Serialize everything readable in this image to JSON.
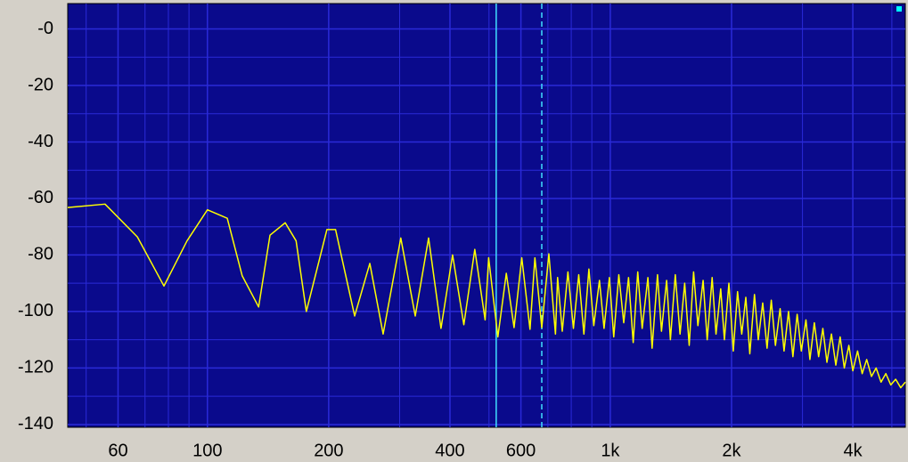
{
  "chart_data": {
    "type": "line",
    "xscale": "log",
    "xlim": [
      45,
      5400
    ],
    "ylim": [
      -141,
      9
    ],
    "xticks": [
      60,
      100,
      200,
      400,
      600,
      {
        "value": 1000,
        "label": "1k"
      },
      {
        "value": 2000,
        "label": "2k"
      },
      {
        "value": 4000,
        "label": "4k"
      }
    ],
    "xminorticks": [
      50,
      70,
      80,
      90,
      300,
      500,
      700,
      800,
      900,
      3000,
      5000
    ],
    "yticks": [
      {
        "value": 0,
        "label": "-0"
      },
      -20,
      -40,
      -60,
      -80,
      -100,
      -120,
      -140
    ],
    "yminorticks": [
      -10,
      -30,
      -50,
      -70,
      -90,
      -110,
      -130
    ],
    "grid": true,
    "cursors": [
      521,
      676
    ],
    "x": [
      45,
      55.7,
      67,
      78,
      89,
      100,
      112,
      122,
      134,
      143,
      156,
      166,
      176,
      198,
      208,
      232,
      253,
      273,
      302,
      328,
      354,
      380,
      406,
      433,
      461,
      489,
      499,
      526,
      552,
      577,
      603,
      632,
      650,
      676,
      704,
      731,
      740,
      760,
      785,
      810,
      835,
      860,
      885,
      910,
      940,
      965,
      995,
      1020,
      1050,
      1080,
      1110,
      1140,
      1170,
      1200,
      1240,
      1270,
      1310,
      1340,
      1380,
      1410,
      1450,
      1490,
      1530,
      1570,
      1610,
      1650,
      1700,
      1740,
      1790,
      1830,
      1880,
      1920,
      1970,
      2020,
      2070,
      2120,
      2170,
      2220,
      2280,
      2330,
      2390,
      2450,
      2510,
      2570,
      2640,
      2700,
      2770,
      2840,
      2910,
      2980,
      3060,
      3130,
      3210,
      3290,
      3370,
      3450,
      3540,
      3630,
      3720,
      3810,
      3910,
      4000,
      4110,
      4220,
      4330,
      4450,
      4570,
      4700,
      4830,
      4970,
      5110,
      5260,
      5400
    ],
    "series": [
      {
        "color": "#ffff00",
        "values": [
          -63.2,
          -62,
          -73.6,
          -91,
          -75,
          -64,
          -67,
          -87.4,
          -98.4,
          -73,
          -68.6,
          -75,
          -100,
          -71,
          -71,
          -101.6,
          -83,
          -108,
          -74,
          -101.6,
          -74,
          -106,
          -80,
          -104.7,
          -78,
          -103,
          -81,
          -109,
          -86.5,
          -105.7,
          -81,
          -106.3,
          -81,
          -105.7,
          -79.6,
          -108,
          -88,
          -107,
          -86,
          -106,
          -87,
          -108,
          -85,
          -105,
          -89,
          -106,
          -88,
          -109,
          -87,
          -104,
          -88,
          -111,
          -86,
          -106,
          -88,
          -113,
          -87,
          -107,
          -89,
          -110,
          -87,
          -108,
          -90,
          -112,
          -86,
          -105,
          -89,
          -110,
          -88,
          -108,
          -92,
          -110,
          -90,
          -114,
          -93,
          -108,
          -95,
          -115,
          -94,
          -110,
          -97,
          -113,
          -96,
          -112,
          -99,
          -114,
          -100,
          -116,
          -101,
          -114,
          -103,
          -117,
          -104,
          -116,
          -106,
          -118,
          -108,
          -119,
          -109,
          -120,
          -112,
          -121,
          -114,
          -122,
          -117,
          -123,
          -120,
          -125,
          -122,
          -126,
          -124,
          -127,
          -125
        ]
      }
    ]
  }
}
